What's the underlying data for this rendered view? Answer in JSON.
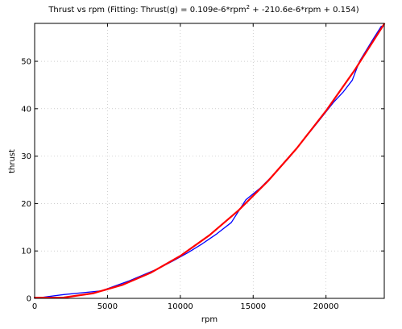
{
  "chart_data": {
    "type": "line",
    "title": "Thrust vs rpm (Fitting: Thrust(g) = 0.109e-6*rpm",
    "title_superscript": "2",
    "title_suffix": " + -210.6e-6*rpm + 0.154)",
    "xlabel": "rpm",
    "ylabel": "thrust",
    "xlim": [
      0,
      24000
    ],
    "ylim": [
      0,
      58
    ],
    "xticks": [
      0,
      5000,
      10000,
      15000,
      20000
    ],
    "yticks": [
      0,
      10,
      20,
      30,
      40,
      50
    ],
    "grid": true,
    "colors": {
      "measured": "#0000ff",
      "fit": "#ff0000",
      "grid": "#b0b0b0"
    },
    "series": [
      {
        "style": "measured",
        "x": [
          0,
          1000,
          2000,
          3000,
          4000,
          4600,
          5500,
          6500,
          7500,
          8500,
          9500,
          10500,
          11500,
          12500,
          13500,
          14500,
          15500,
          16500,
          17500,
          18500,
          19500,
          20500,
          21200,
          21800,
          22300,
          22800,
          23300,
          23800
        ],
        "y": [
          0.0,
          0.4,
          0.8,
          1.1,
          1.4,
          1.6,
          2.6,
          3.7,
          5.0,
          6.3,
          7.9,
          9.6,
          11.5,
          13.6,
          16.0,
          20.8,
          23.3,
          26.4,
          29.8,
          33.6,
          37.4,
          41.3,
          43.6,
          46.0,
          50.0,
          52.5,
          55.0,
          57.4
        ]
      },
      {
        "style": "fit",
        "x": [
          0,
          2000,
          4000,
          6000,
          8000,
          10000,
          12000,
          14000,
          16000,
          18000,
          20000,
          22000,
          24000
        ],
        "y": [
          0.154,
          0.17,
          1.06,
          2.81,
          5.45,
          8.95,
          13.32,
          18.57,
          24.69,
          31.68,
          39.55,
          48.29,
          57.9
        ]
      }
    ]
  }
}
